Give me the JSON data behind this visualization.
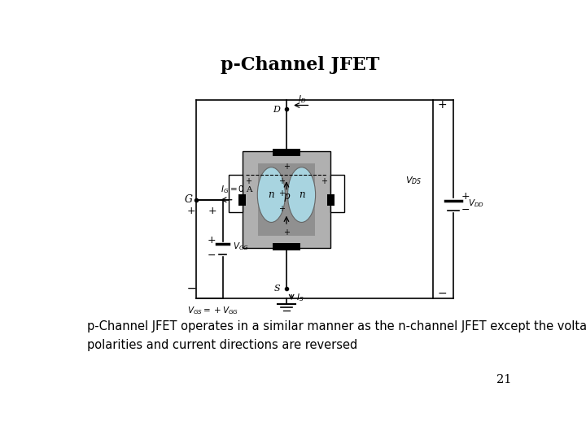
{
  "title": "p-Channel JFET",
  "title_fontsize": 16,
  "title_fontweight": "bold",
  "body_text": "p-Channel JFET operates in a similar manner as the n-channel JFET except the voltage\npolarities and current directions are reversed",
  "body_fontsize": 10.5,
  "page_number": "21",
  "bg_color": "#ffffff",
  "jfet_body_color": "#b0b0b0",
  "jfet_inner_color": "#909090",
  "jfet_gate_color": "#a8d4e0",
  "circuit_line_color": "#000000",
  "line_width": 1.2
}
